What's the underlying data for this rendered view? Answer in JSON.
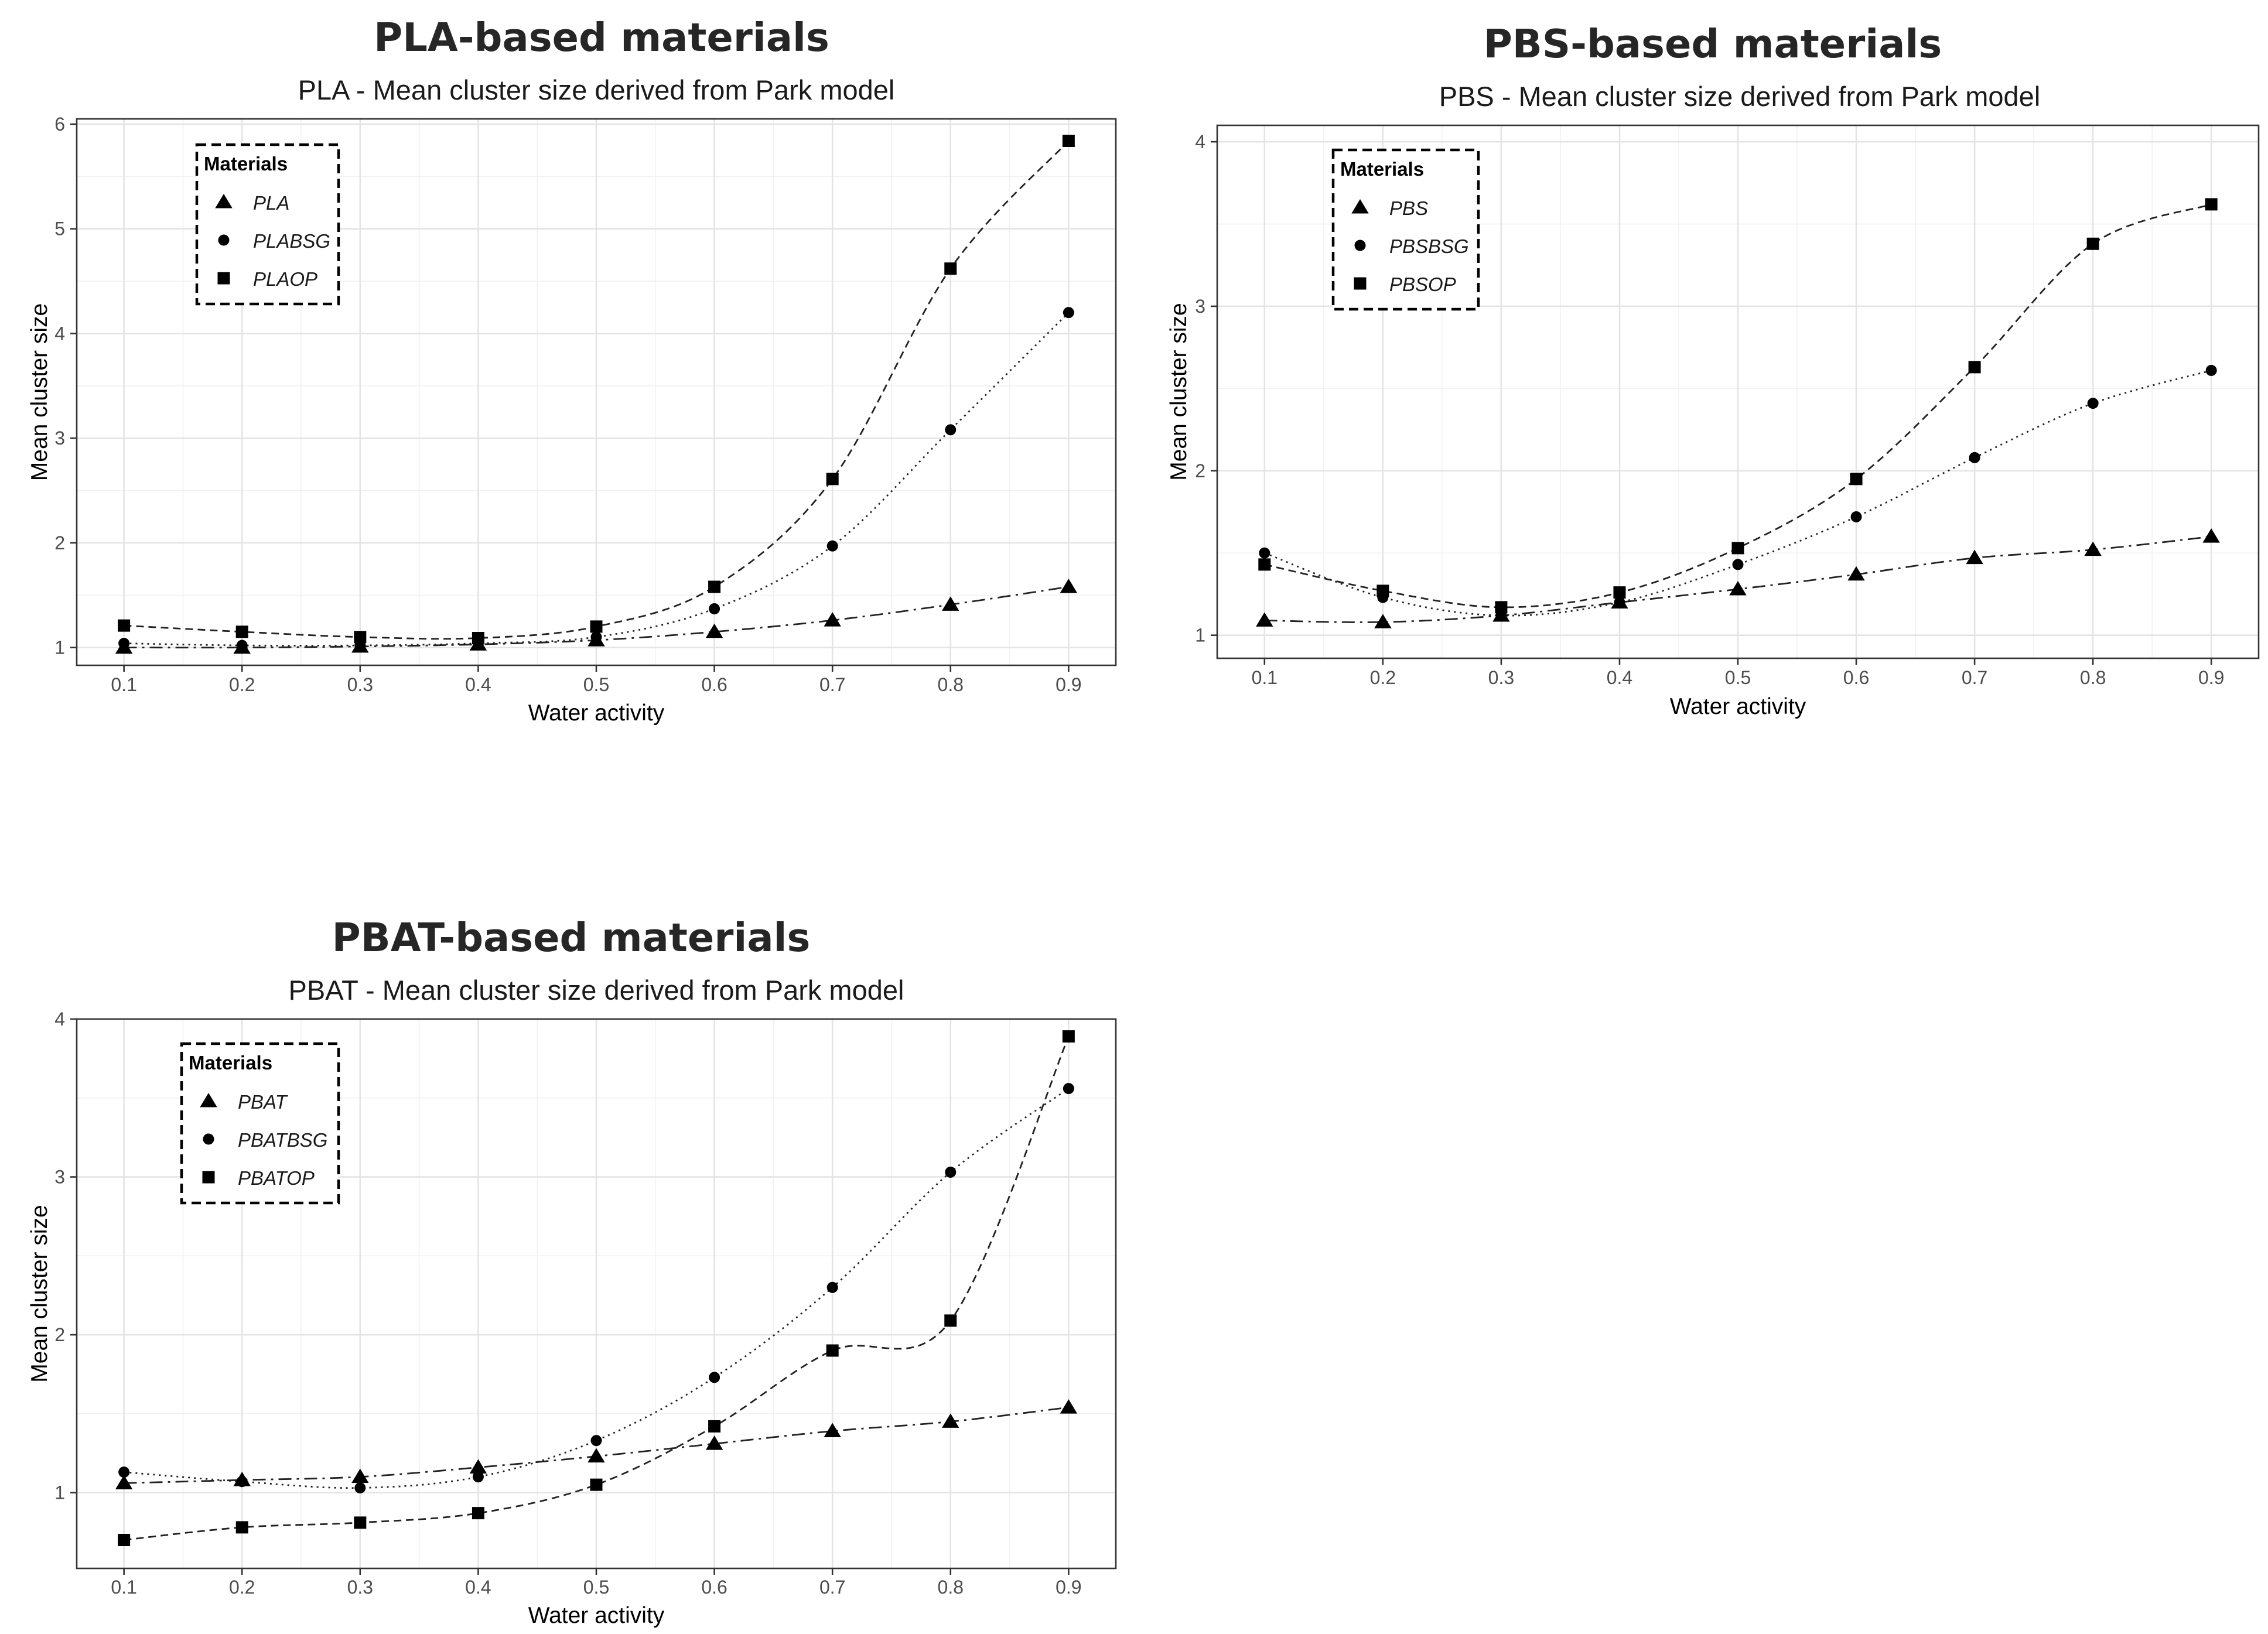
{
  "chart_data": [
    {
      "type": "line",
      "title": "PLA-based materials",
      "subtitle": "PLA - Mean cluster size derived from Park model",
      "xlabel": "Water activity",
      "ylabel": "Mean cluster size",
      "xlim": [
        0.06,
        0.94
      ],
      "ylim": [
        0.83,
        6.05
      ],
      "x": [
        0.1,
        0.2,
        0.3,
        0.4,
        0.5,
        0.6,
        0.7,
        0.8,
        0.9
      ],
      "x_ticks": [
        "0.1",
        "0.2",
        "0.3",
        "0.4",
        "0.5",
        "0.6",
        "0.7",
        "0.8",
        "0.9"
      ],
      "y_ticks": [
        1,
        2,
        3,
        4,
        5,
        6
      ],
      "y_tick_labels": [
        "1",
        "2",
        "3",
        "4",
        "5",
        "6"
      ],
      "grid": true,
      "legend": {
        "title": "Materials",
        "position": "top-left"
      },
      "series": [
        {
          "name": "PLA",
          "marker": "triangle",
          "line": "dashdot",
          "values": [
            1.0,
            1.0,
            1.01,
            1.03,
            1.07,
            1.15,
            1.26,
            1.41,
            1.58
          ]
        },
        {
          "name": "PLABSG",
          "marker": "circle",
          "line": "dotted",
          "values": [
            1.04,
            1.02,
            1.02,
            1.04,
            1.1,
            1.37,
            1.97,
            3.08,
            4.2
          ]
        },
        {
          "name": "PLAOP",
          "marker": "square",
          "line": "dashed",
          "values": [
            1.21,
            1.15,
            1.1,
            1.09,
            1.2,
            1.58,
            2.61,
            4.62,
            5.84
          ]
        }
      ]
    },
    {
      "type": "line",
      "title": "PBS-based materials",
      "subtitle": "PBS - Mean cluster size derived from Park model",
      "xlabel": "Water activity",
      "ylabel": "Mean cluster size",
      "xlim": [
        0.06,
        0.94
      ],
      "ylim": [
        0.86,
        4.1
      ],
      "x": [
        0.1,
        0.2,
        0.3,
        0.4,
        0.5,
        0.6,
        0.7,
        0.8,
        0.9
      ],
      "x_ticks": [
        "0.1",
        "0.2",
        "0.3",
        "0.4",
        "0.5",
        "0.6",
        "0.7",
        "0.8",
        "0.9"
      ],
      "y_ticks": [
        1,
        2,
        3,
        4
      ],
      "y_tick_labels": [
        "1",
        "2",
        "3",
        "4"
      ],
      "grid": true,
      "legend": {
        "title": "Materials",
        "position": "top-left"
      },
      "series": [
        {
          "name": "PBS",
          "marker": "triangle",
          "line": "dashdot",
          "values": [
            1.09,
            1.08,
            1.12,
            1.2,
            1.28,
            1.37,
            1.47,
            1.52,
            1.6
          ]
        },
        {
          "name": "PBSBSG",
          "marker": "circle",
          "line": "dotted",
          "values": [
            1.5,
            1.23,
            1.12,
            1.2,
            1.43,
            1.72,
            2.08,
            2.41,
            2.61
          ]
        },
        {
          "name": "PBSOP",
          "marker": "square",
          "line": "dashed",
          "values": [
            1.43,
            1.27,
            1.17,
            1.26,
            1.53,
            1.95,
            2.63,
            3.38,
            3.62
          ]
        }
      ]
    },
    {
      "type": "line",
      "title": "PBAT-based materials",
      "subtitle": "PBAT - Mean cluster size derived from Park model",
      "xlabel": "Water activity",
      "ylabel": "Mean cluster size",
      "xlim": [
        0.06,
        0.94
      ],
      "ylim": [
        0.52,
        4.0
      ],
      "x": [
        0.1,
        0.2,
        0.3,
        0.4,
        0.5,
        0.6,
        0.7,
        0.8,
        0.9
      ],
      "x_ticks": [
        "0.1",
        "0.2",
        "0.3",
        "0.4",
        "0.5",
        "0.6",
        "0.7",
        "0.8",
        "0.9"
      ],
      "y_ticks": [
        1,
        2,
        3,
        4
      ],
      "y_tick_labels": [
        "1",
        "2",
        "3",
        "4"
      ],
      "grid": true,
      "legend": {
        "title": "Materials",
        "position": "top-left"
      },
      "series": [
        {
          "name": "PBAT",
          "marker": "triangle",
          "line": "dashdot",
          "values": [
            1.06,
            1.08,
            1.1,
            1.16,
            1.23,
            1.31,
            1.39,
            1.45,
            1.54
          ]
        },
        {
          "name": "PBATBSG",
          "marker": "circle",
          "line": "dotted",
          "values": [
            1.13,
            1.07,
            1.03,
            1.1,
            1.33,
            1.73,
            2.3,
            3.03,
            3.56
          ]
        },
        {
          "name": "PBATOP",
          "marker": "square",
          "line": "dashed",
          "values": [
            0.7,
            0.78,
            0.81,
            0.87,
            1.05,
            1.42,
            1.9,
            2.09,
            3.89
          ]
        }
      ]
    }
  ]
}
